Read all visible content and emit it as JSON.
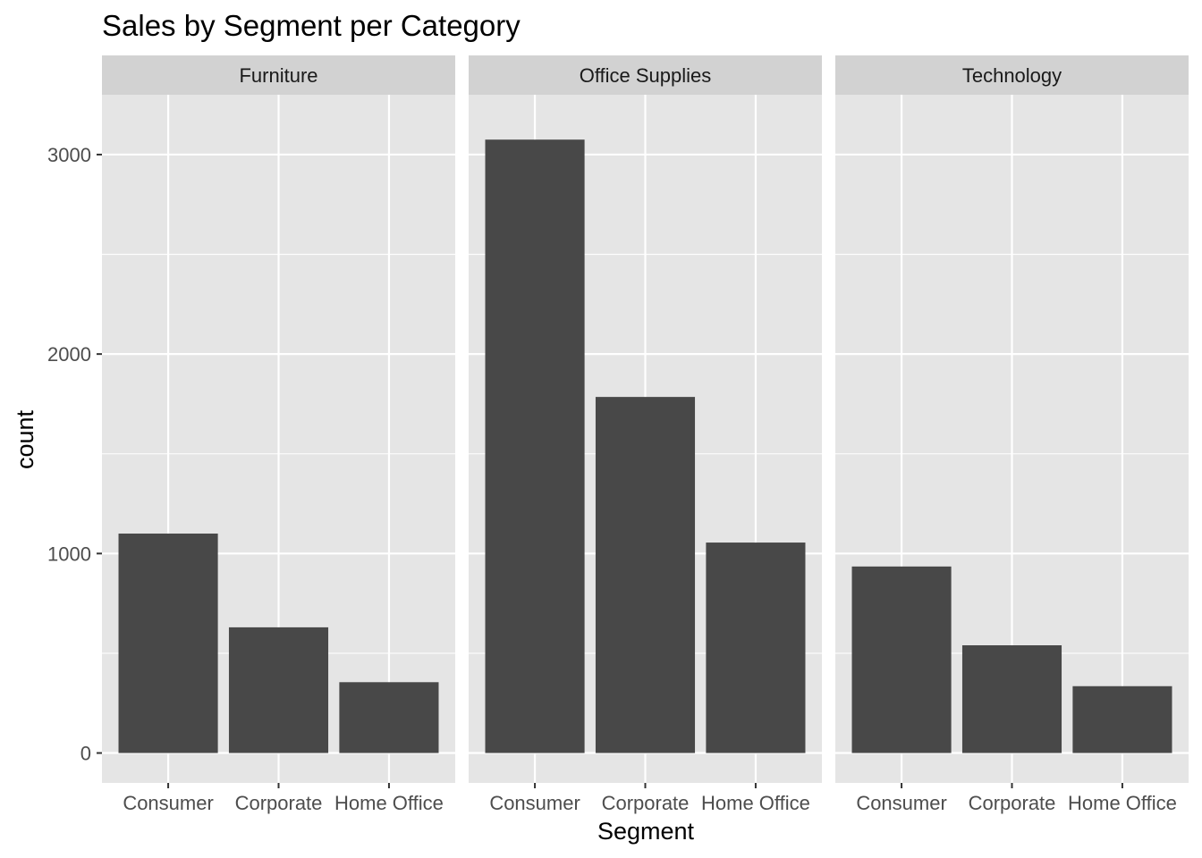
{
  "chart_data": {
    "type": "bar",
    "title": "Sales by Segment per Category",
    "xlabel": "Segment",
    "ylabel": "count",
    "ylim": [
      -150,
      3300
    ],
    "yticks": [
      0,
      1000,
      2000,
      3000
    ],
    "grid": true,
    "categories": [
      "Consumer",
      "Corporate",
      "Home Office"
    ],
    "facets": [
      {
        "name": "Furniture",
        "values": [
          1100,
          630,
          355
        ]
      },
      {
        "name": "Office Supplies",
        "values": [
          3075,
          1785,
          1055
        ]
      },
      {
        "name": "Technology",
        "values": [
          935,
          540,
          335
        ]
      }
    ],
    "colors": {
      "bar": "#484848",
      "panel": "#e5e5e5",
      "strip": "#d2d2d2",
      "grid": "#ffffff"
    }
  }
}
